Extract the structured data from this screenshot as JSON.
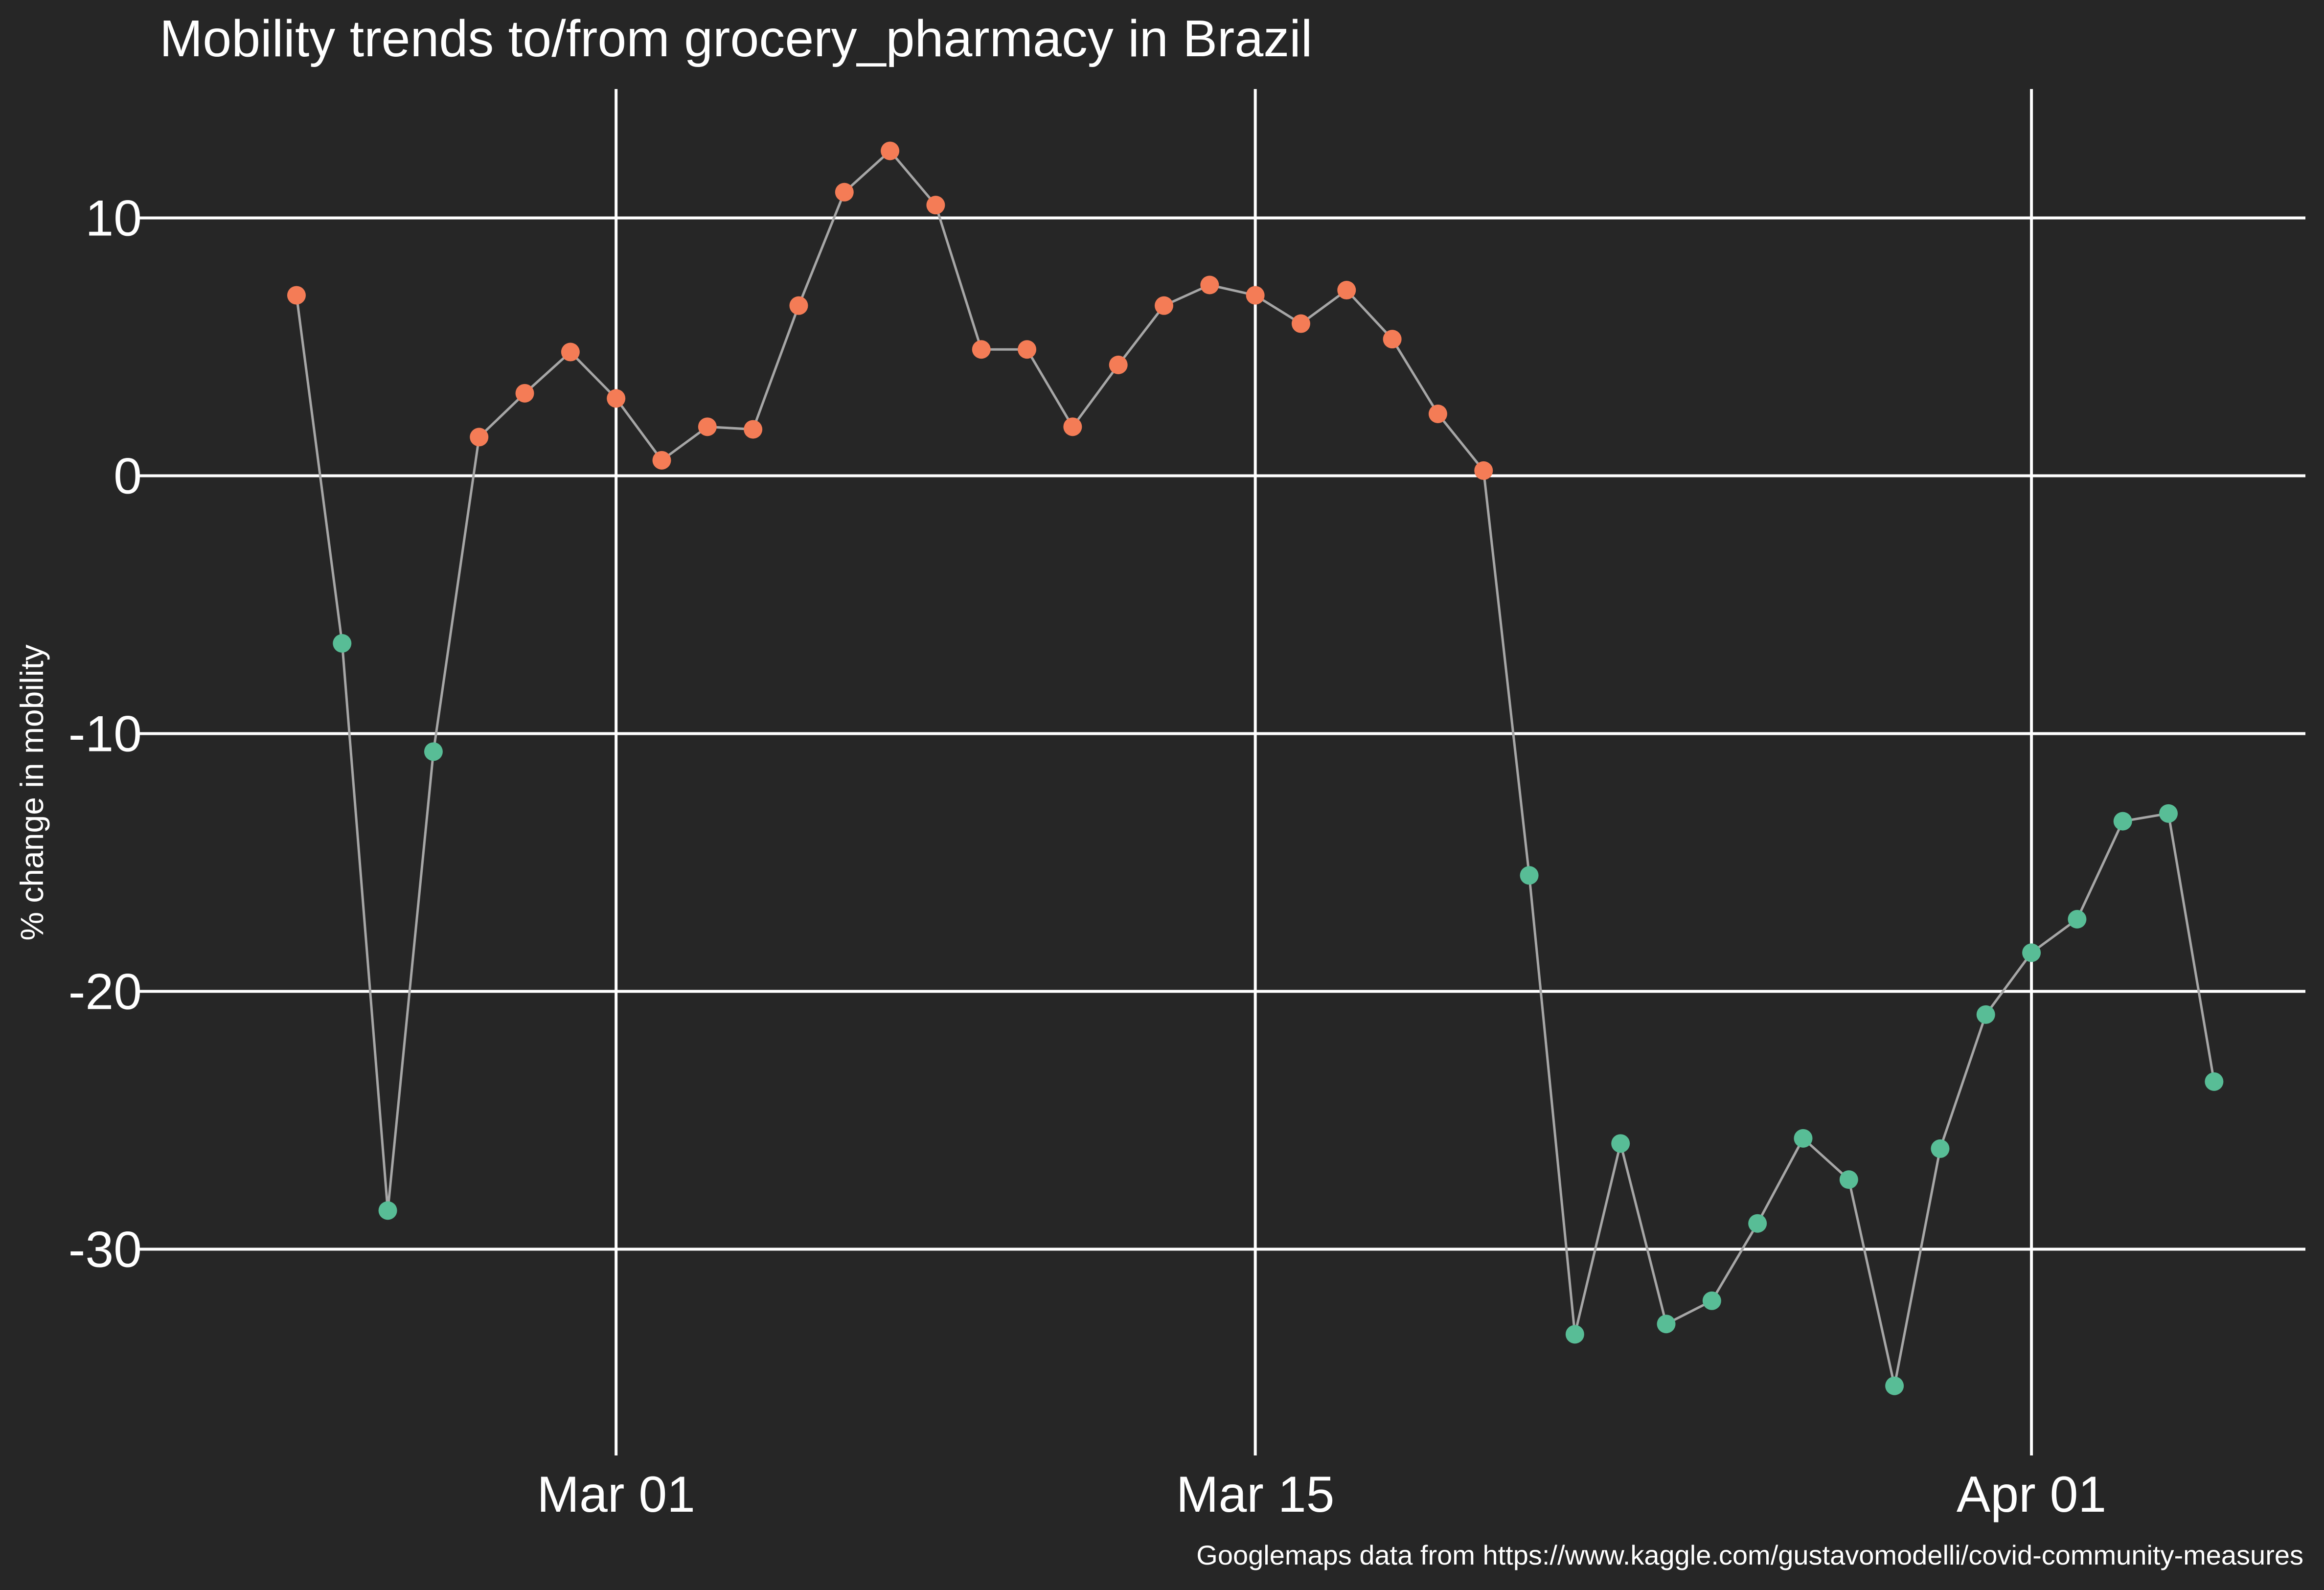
{
  "chart_data": {
    "type": "scatter",
    "title": "Mobility trends to/from grocery_pharmacy in Brazil",
    "xlabel": "",
    "ylabel": "% change in mobility",
    "caption": "Googlemaps data from https://www.kaggle.com/gustavomodelli/covid-community-measures",
    "x_ticks": [
      "Mar 01",
      "Mar 15",
      "Apr 01"
    ],
    "y_ticks": [
      "10",
      "0",
      "-10",
      "-20",
      "-30"
    ],
    "ylim": [
      -38,
      15
    ],
    "xlim": [
      "2020-02-20",
      "2020-04-07"
    ],
    "grid": true,
    "legend": "none",
    "colors": {
      "background": "#262626",
      "positive": "#f47c56",
      "negative": "#58bd96",
      "line": "#a6a6a6",
      "grid": "#ffffff"
    },
    "x": [
      "2020-02-23",
      "2020-02-24",
      "2020-02-25",
      "2020-02-26",
      "2020-02-27",
      "2020-02-28",
      "2020-02-29",
      "2020-03-01",
      "2020-03-02",
      "2020-03-03",
      "2020-03-04",
      "2020-03-05",
      "2020-03-06",
      "2020-03-07",
      "2020-03-08",
      "2020-03-09",
      "2020-03-10",
      "2020-03-11",
      "2020-03-12",
      "2020-03-13",
      "2020-03-14",
      "2020-03-15",
      "2020-03-16",
      "2020-03-17",
      "2020-03-18",
      "2020-03-19",
      "2020-03-20",
      "2020-03-21",
      "2020-03-22",
      "2020-03-23",
      "2020-03-24",
      "2020-03-25",
      "2020-03-26",
      "2020-03-27",
      "2020-03-28",
      "2020-03-29",
      "2020-03-30",
      "2020-03-31",
      "2020-04-01",
      "2020-04-02",
      "2020-04-03",
      "2020-04-04",
      "2020-04-05"
    ],
    "values": [
      7.0,
      -6.5,
      -28.5,
      -10.7,
      1.5,
      3.2,
      4.8,
      3.0,
      0.6,
      1.9,
      1.8,
      6.6,
      11.0,
      12.6,
      10.5,
      4.9,
      4.9,
      1.9,
      4.3,
      6.6,
      7.4,
      7.0,
      5.9,
      7.2,
      5.3,
      2.4,
      0.2,
      -15.5,
      -33.3,
      -25.9,
      -32.9,
      -32.0,
      -29.0,
      -25.7,
      -27.3,
      -35.3,
      -26.1,
      -20.9,
      -18.5,
      -17.2,
      -13.4,
      -13.1,
      -23.5
    ]
  }
}
